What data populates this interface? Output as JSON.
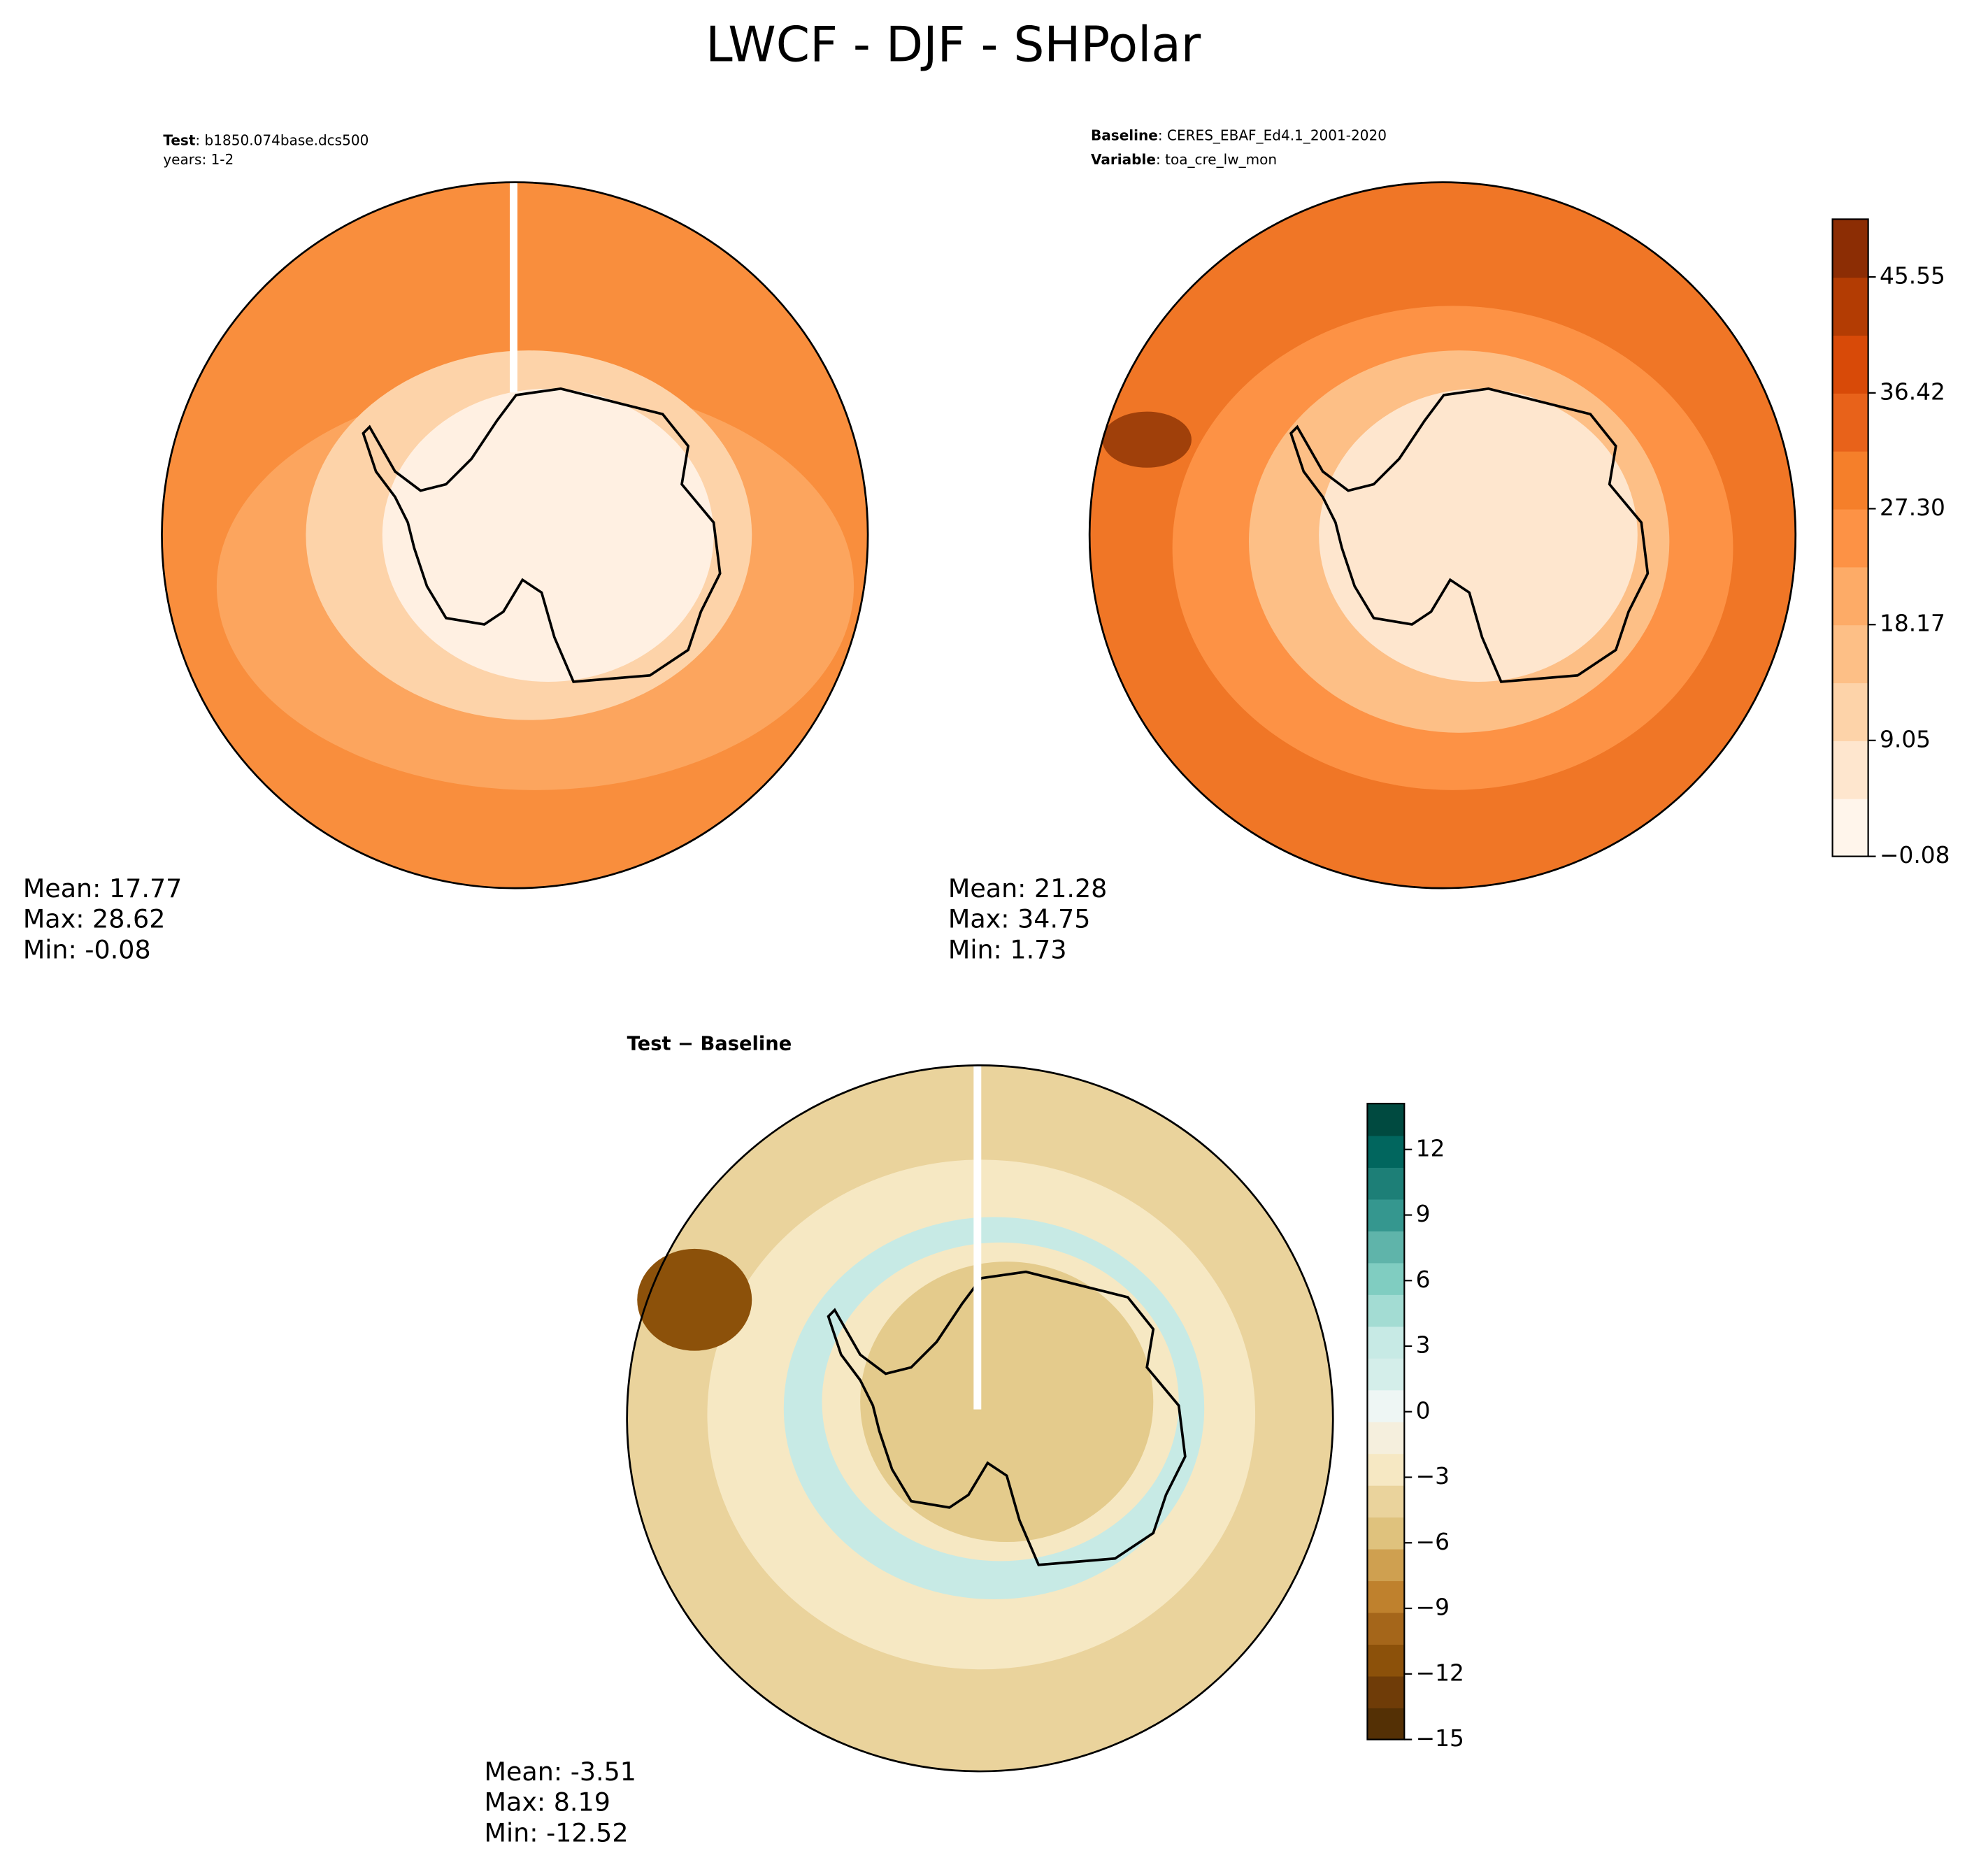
{
  "title": "LWCF - DJF - SHPolar",
  "panels": [
    {
      "header": [
        {
          "key": "Test",
          "text": ": b1850.074base.dcs500"
        },
        {
          "text": "years: 1-2"
        }
      ],
      "stats": [
        "Mean: 17.77",
        "Max: 28.62",
        "Min: -0.08"
      ]
    },
    {
      "header": [
        {
          "key": "Baseline",
          "text": ": CERES_EBAF_Ed4.1_2001-2020"
        },
        {
          "key": "Variable",
          "text": ": toa_cre_lw_mon"
        }
      ],
      "stats": [
        "Mean: 21.28",
        "Max: 34.75",
        "Min:  1.73"
      ]
    },
    {
      "title": "Test − Baseline",
      "stats": [
        "Mean: -3.51",
        "Max:  8.19",
        "Min: -12.52"
      ]
    }
  ],
  "colorbars": [
    {
      "lim": [
        -0.08,
        50.1
      ],
      "ticks": [
        {
          "value": -0.08,
          "label": "−0.08"
        },
        9.05,
        18.17,
        27.3,
        36.42,
        45.55
      ],
      "tick_labels_fixed": [
        "−0.08",
        "9.05",
        "18.17",
        "27.30",
        "36.42",
        "45.55"
      ],
      "colors": [
        "#fff5eb",
        "#fee6ce",
        "#fdd3a9",
        "#fdbf86",
        "#fdab67",
        "#fd9245",
        "#f57f2a",
        "#e8621a",
        "#d84a08",
        "#b33c03",
        "#8c2d04"
      ]
    },
    {
      "lim": [
        -15,
        14.1
      ],
      "ticks": [
        {
          "value": -15,
          "label": "−15"
        },
        {
          "value": -12,
          "label": "−12"
        },
        {
          "value": -9,
          "label": "−9"
        },
        {
          "value": -6,
          "label": "−6"
        },
        {
          "value": -3,
          "label": "−3"
        },
        0,
        3,
        6,
        9,
        12
      ],
      "colors": [
        "#543005",
        "#6f3c08",
        "#8c510a",
        "#a5661a",
        "#bf812d",
        "#cfa050",
        "#dfc27d",
        "#ead39c",
        "#f6e8c3",
        "#f5efdd",
        "#eef6f4",
        "#d4eeea",
        "#c7eae5",
        "#a3dcd3",
        "#80cdc1",
        "#5fb4aa",
        "#35978f",
        "#1d7f77",
        "#01665e",
        "#004a40"
      ]
    }
  ]
}
